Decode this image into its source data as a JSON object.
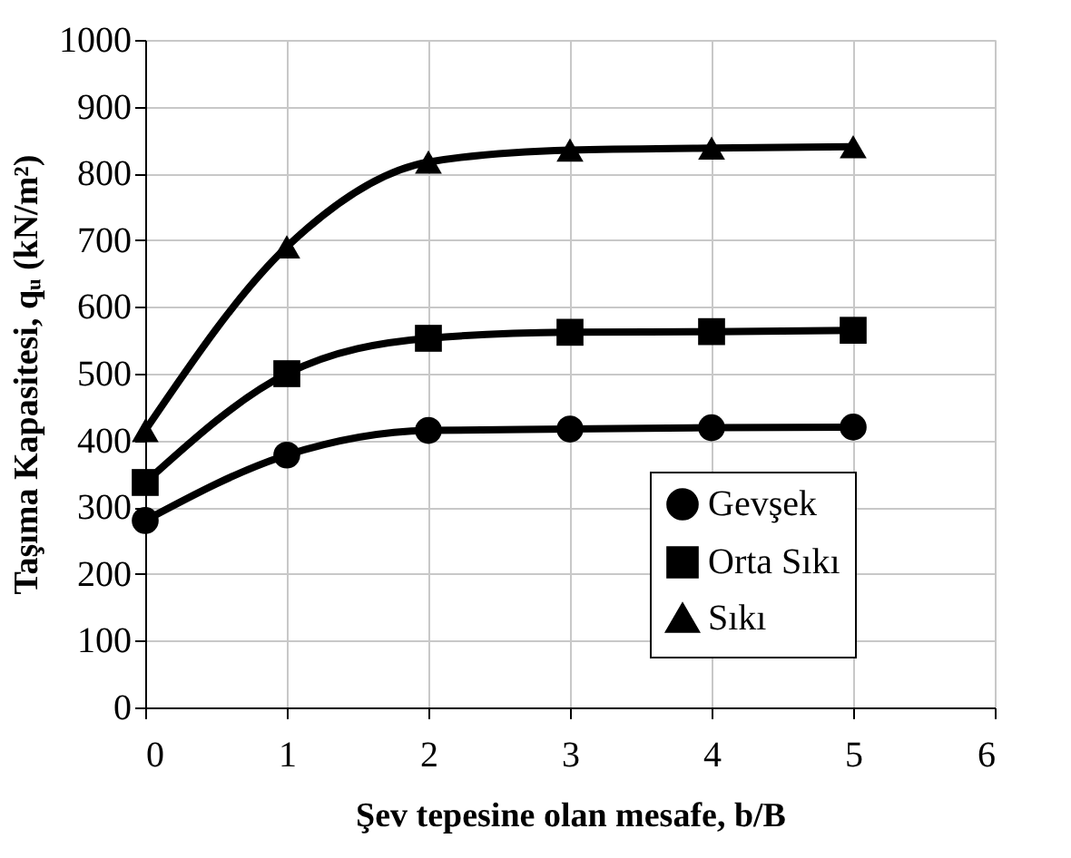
{
  "chart_data": {
    "type": "line",
    "xlabel": "Şev tepesine olan mesafe, b/B",
    "ylabel": "Taşıma Kapasitesi, qᵤ (kN/m²)",
    "x": [
      0,
      1,
      2,
      3,
      4,
      5
    ],
    "series": [
      {
        "name": "Gevşek",
        "color": "#000000",
        "marker": "circle",
        "values": [
          280,
          378,
          415,
          417,
          419,
          420
        ]
      },
      {
        "name": "Orta Sıkı",
        "color": "#000000",
        "marker": "square",
        "values": [
          337,
          500,
          553,
          562,
          563,
          565
        ]
      },
      {
        "name": "Sıkı",
        "color": "#000000",
        "marker": "triangle",
        "values": [
          415,
          690,
          817,
          835,
          838,
          840
        ]
      }
    ],
    "xlim": [
      0,
      6
    ],
    "xticks": [
      0,
      1,
      2,
      3,
      4,
      5,
      6
    ],
    "ylim": [
      0,
      1000
    ],
    "yticks": [
      0,
      100,
      200,
      300,
      400,
      500,
      600,
      700,
      800,
      900,
      1000
    ],
    "grid": true,
    "legend": "bottom right",
    "line_style": "solid"
  }
}
